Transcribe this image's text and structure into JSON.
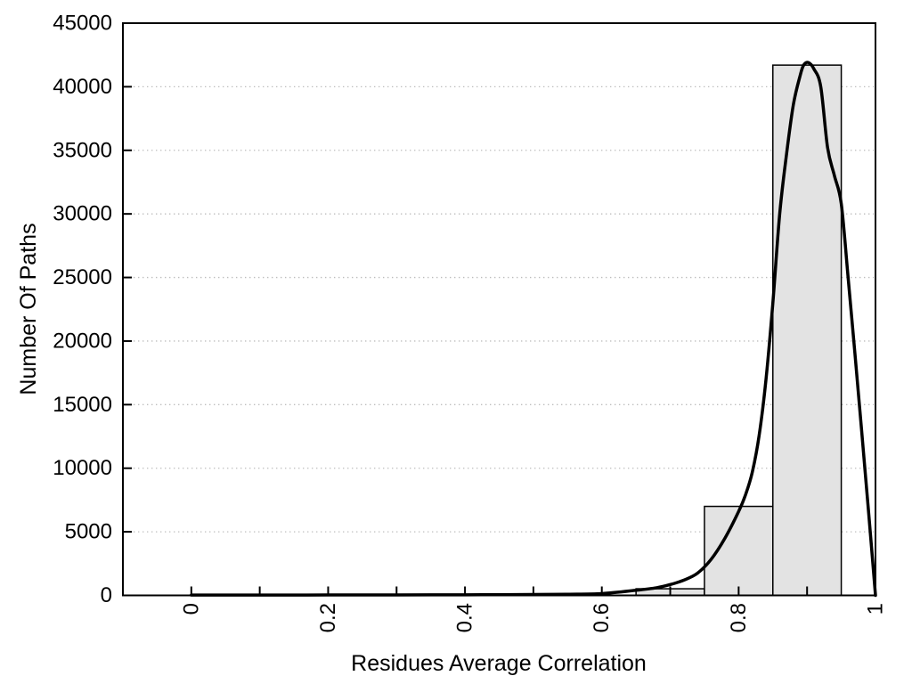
{
  "chart_data": {
    "type": "bar",
    "subtype": "histogram-with-density-curve",
    "title": "",
    "xlabel": "Residues Average Correlation",
    "ylabel": "Number Of Paths",
    "xlim": [
      -0.1,
      1.0
    ],
    "ylim": [
      0,
      45000
    ],
    "legend": "none",
    "grid": {
      "horizontal": true,
      "vertical": false,
      "style": "dotted",
      "color": "#bdbdbd"
    },
    "axis_color": "#000000",
    "text_color": "#000000",
    "x_tick_label_rotation": -90,
    "x_ticks": [
      {
        "value": 0.0,
        "label": "0"
      },
      {
        "value": 0.1,
        "label": ""
      },
      {
        "value": 0.2,
        "label": "0.2"
      },
      {
        "value": 0.3,
        "label": ""
      },
      {
        "value": 0.4,
        "label": "0.4"
      },
      {
        "value": 0.5,
        "label": ""
      },
      {
        "value": 0.6,
        "label": "0.6"
      },
      {
        "value": 0.7,
        "label": ""
      },
      {
        "value": 0.8,
        "label": "0.8"
      },
      {
        "value": 0.9,
        "label": ""
      },
      {
        "value": 1.0,
        "label": "1"
      }
    ],
    "y_ticks": [
      {
        "value": 0,
        "label": "0"
      },
      {
        "value": 5000,
        "label": "5000"
      },
      {
        "value": 10000,
        "label": "10000"
      },
      {
        "value": 15000,
        "label": "15000"
      },
      {
        "value": 20000,
        "label": "20000"
      },
      {
        "value": 25000,
        "label": "25000"
      },
      {
        "value": 30000,
        "label": "30000"
      },
      {
        "value": 35000,
        "label": "35000"
      },
      {
        "value": 40000,
        "label": "40000"
      },
      {
        "value": 45000,
        "label": "45000"
      }
    ],
    "bars": {
      "fill": "#e3e3e3",
      "border": "#000000",
      "bins": [
        {
          "x_from": 0.65,
          "x_to": 0.75,
          "count": 520
        },
        {
          "x_from": 0.75,
          "x_to": 0.85,
          "count": 7000
        },
        {
          "x_from": 0.85,
          "x_to": 0.95,
          "count": 41700
        }
      ]
    },
    "curve": {
      "name": "density-curve",
      "color": "#000000",
      "points": [
        [
          0.0,
          30
        ],
        [
          0.05,
          30
        ],
        [
          0.1,
          30
        ],
        [
          0.15,
          30
        ],
        [
          0.2,
          32
        ],
        [
          0.25,
          33
        ],
        [
          0.3,
          36
        ],
        [
          0.35,
          40
        ],
        [
          0.4,
          45
        ],
        [
          0.45,
          55
        ],
        [
          0.5,
          70
        ],
        [
          0.55,
          90
        ],
        [
          0.6,
          140
        ],
        [
          0.65,
          400
        ],
        [
          0.68,
          600
        ],
        [
          0.7,
          850
        ],
        [
          0.72,
          1200
        ],
        [
          0.74,
          1750
        ],
        [
          0.76,
          2850
        ],
        [
          0.78,
          4500
        ],
        [
          0.8,
          6600
        ],
        [
          0.81,
          7900
        ],
        [
          0.82,
          9700
        ],
        [
          0.83,
          12600
        ],
        [
          0.84,
          17000
        ],
        [
          0.85,
          23000
        ],
        [
          0.86,
          30000
        ],
        [
          0.87,
          34700
        ],
        [
          0.88,
          38600
        ],
        [
          0.89,
          40900
        ],
        [
          0.895,
          41700
        ],
        [
          0.902,
          41900
        ],
        [
          0.91,
          41400
        ],
        [
          0.92,
          40000
        ],
        [
          0.93,
          35200
        ],
        [
          0.94,
          33000
        ],
        [
          0.95,
          30800
        ],
        [
          0.96,
          25000
        ],
        [
          0.97,
          19000
        ],
        [
          0.98,
          12800
        ],
        [
          0.99,
          6500
        ],
        [
          1.0,
          0
        ]
      ]
    }
  }
}
